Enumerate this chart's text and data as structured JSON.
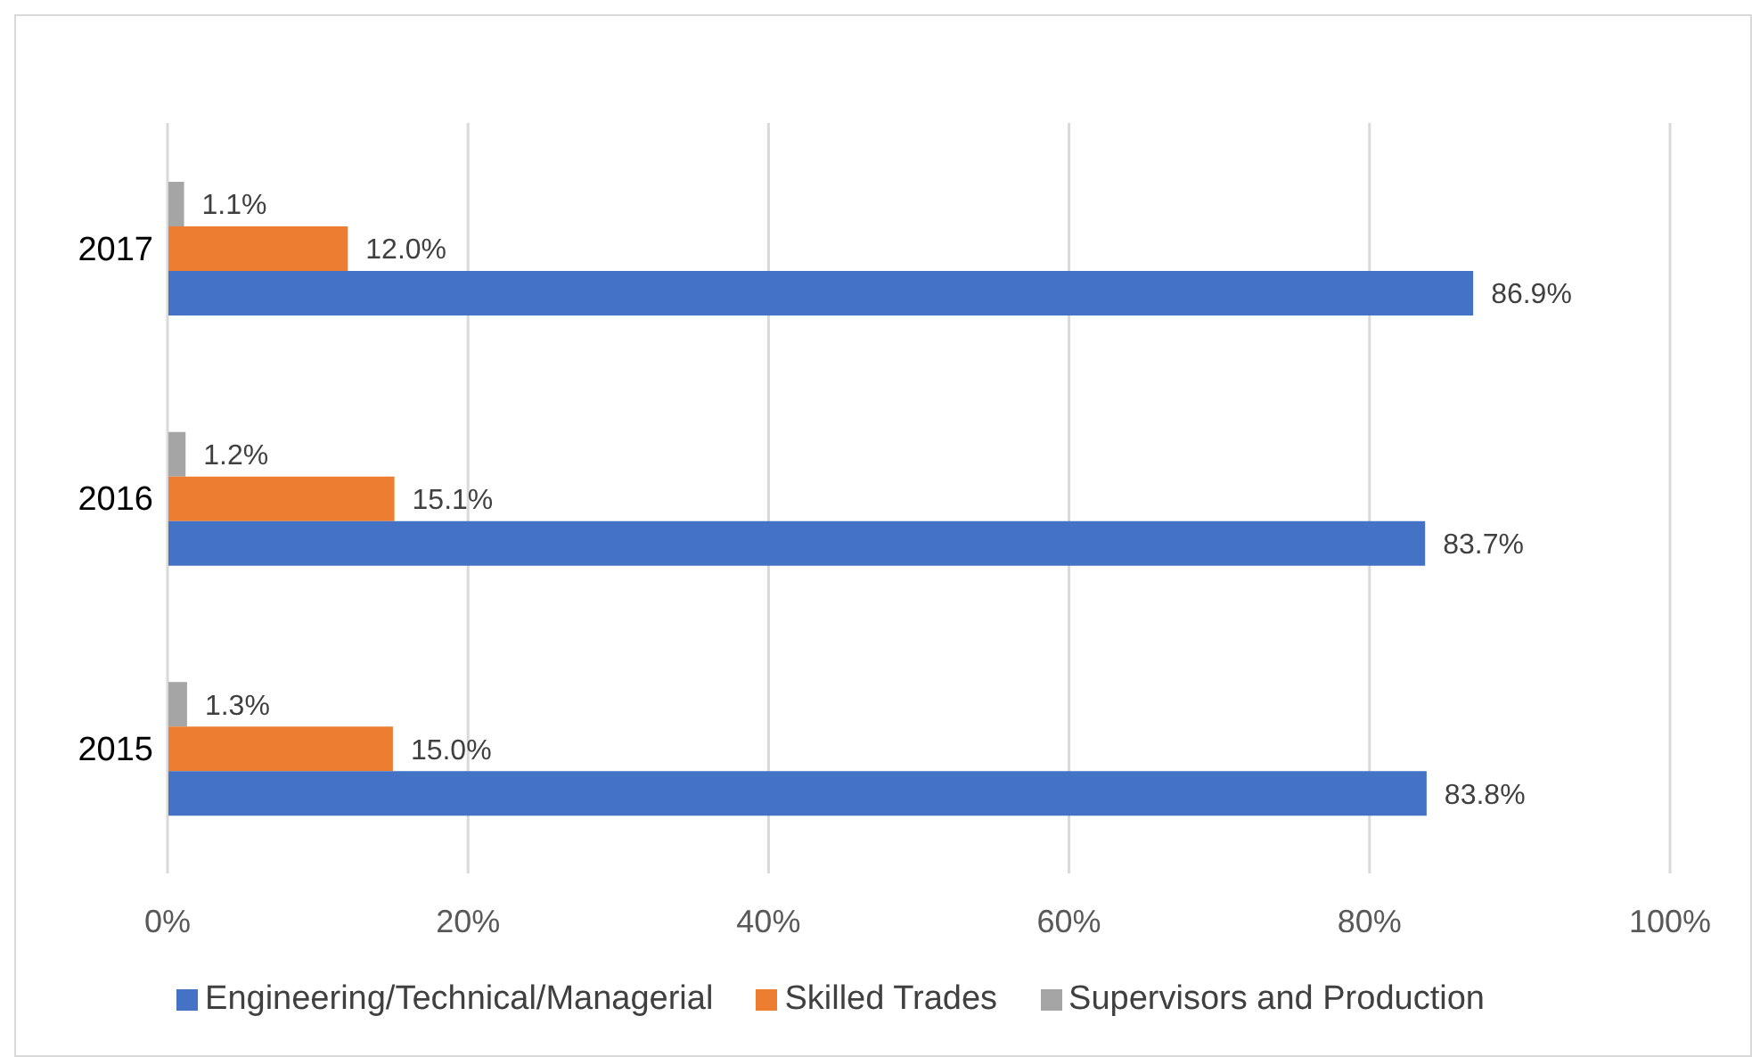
{
  "chart_data": {
    "type": "bar",
    "orientation": "horizontal",
    "categories": [
      "2017",
      "2016",
      "2015"
    ],
    "series": [
      {
        "name": "Supervisors and Production",
        "color": "#a5a5a5",
        "values": [
          1.1,
          1.2,
          1.3
        ],
        "value_labels": [
          "1.1%",
          "1.2%",
          "1.3%"
        ]
      },
      {
        "name": "Skilled Trades",
        "color": "#ed7d31",
        "values": [
          12.0,
          15.1,
          15.0
        ],
        "value_labels": [
          "12.0%",
          "15.1%",
          "15.0%"
        ]
      },
      {
        "name": "Engineering/Technical/Managerial",
        "color": "#4472c4",
        "values": [
          86.9,
          83.7,
          83.8
        ],
        "value_labels": [
          "86.9%",
          "83.7%",
          "83.8%"
        ]
      }
    ],
    "xlim": [
      0,
      100
    ],
    "xticks": [
      {
        "value": 0,
        "label": "0%"
      },
      {
        "value": 20,
        "label": "20%"
      },
      {
        "value": 40,
        "label": "40%"
      },
      {
        "value": 60,
        "label": "60%"
      },
      {
        "value": 80,
        "label": "80%"
      },
      {
        "value": 100,
        "label": "100%"
      }
    ],
    "grid": "x",
    "legend": "bottom"
  }
}
